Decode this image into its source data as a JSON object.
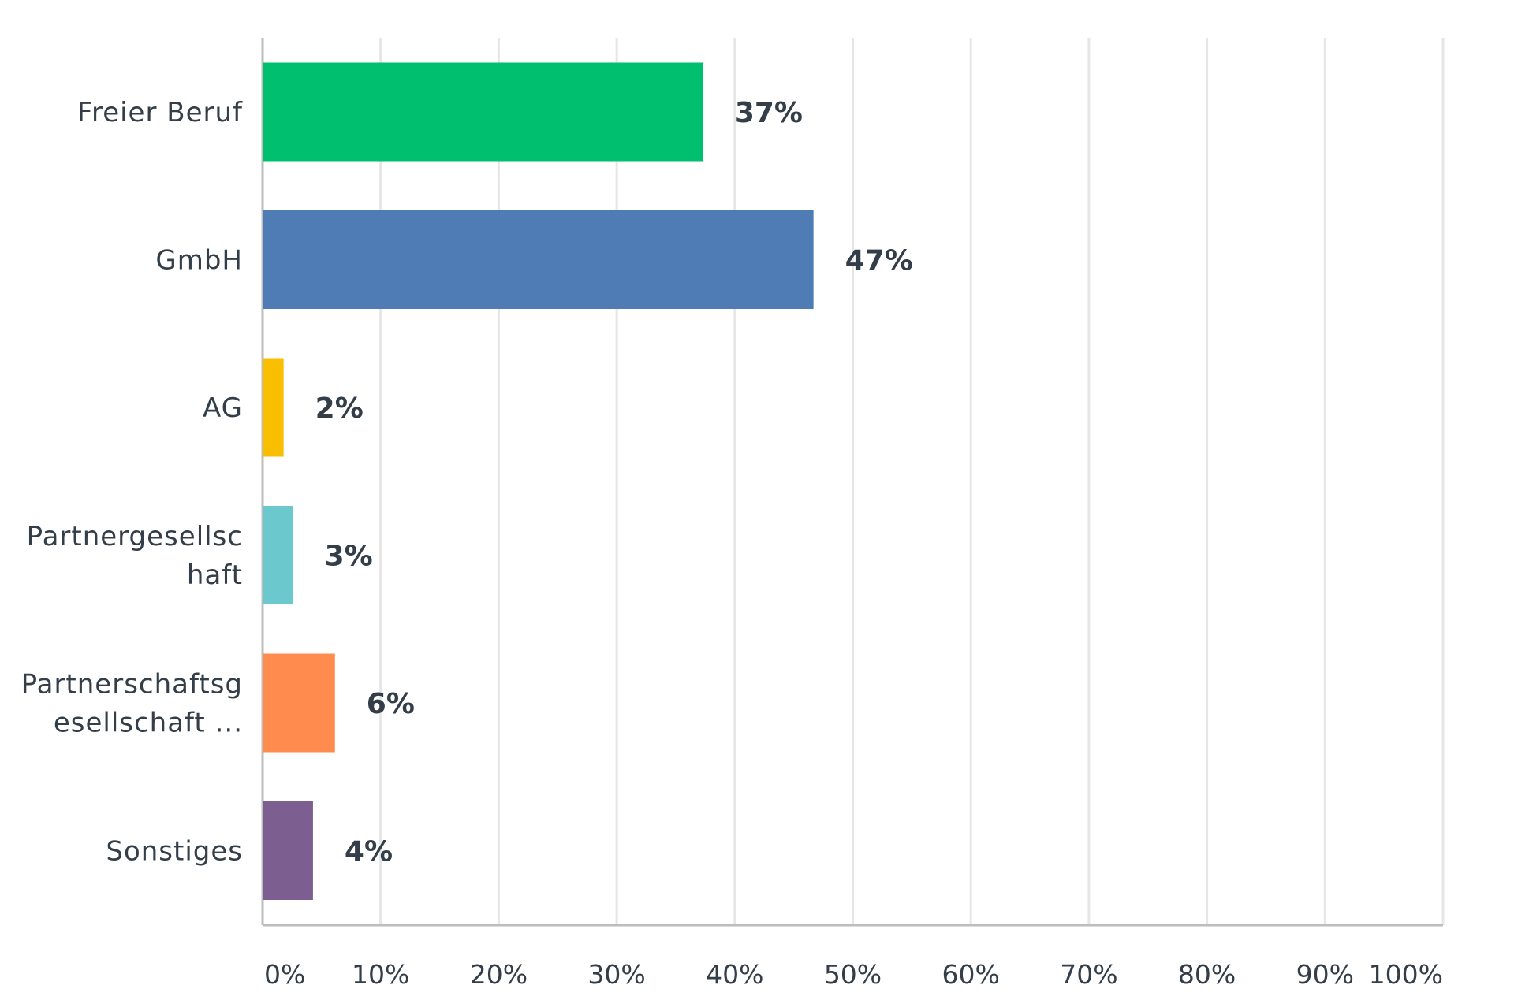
{
  "chart_data": {
    "type": "bar",
    "orientation": "horizontal",
    "categories": [
      [
        "Freier Beruf"
      ],
      [
        "GmbH"
      ],
      [
        "AG"
      ],
      [
        "Partnergesellsc",
        "haft"
      ],
      [
        "Partnerschaftsg",
        "esellschaft ..."
      ],
      [
        "Sonstiges"
      ]
    ],
    "values": [
      37.33,
      46.67,
      1.78,
      2.58,
      6.13,
      4.27
    ],
    "value_labels": [
      "37%",
      "47%",
      "2%",
      "3%",
      "6%",
      "4%"
    ],
    "colors": [
      "#00bf6f",
      "#507cb6",
      "#f9be00",
      "#6bc8cd",
      "#ff8b4f",
      "#7d5e90"
    ],
    "xlim": [
      0,
      100
    ],
    "x_ticks": [
      0,
      10,
      20,
      30,
      40,
      50,
      60,
      70,
      80,
      90,
      100
    ],
    "x_tick_labels": [
      "0%",
      "10%",
      "20%",
      "30%",
      "40%",
      "50%",
      "60%",
      "70%",
      "80%",
      "90%",
      "100%"
    ],
    "grid": true,
    "legend": "none",
    "title": "",
    "xlabel": "",
    "ylabel": ""
  }
}
